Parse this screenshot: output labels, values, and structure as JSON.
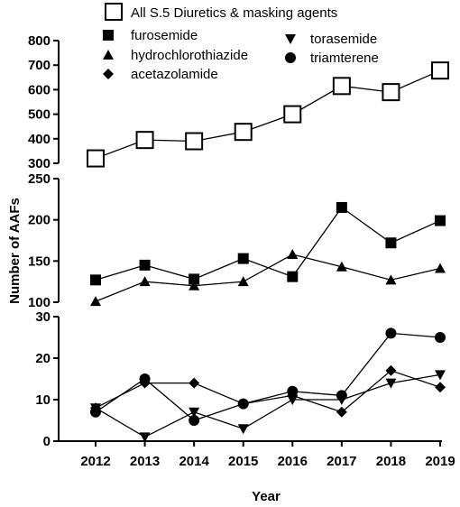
{
  "chart_data": {
    "type": "line",
    "xlabel": "Year",
    "ylabel": "Number of AAFs",
    "x": [
      2012,
      2013,
      2014,
      2015,
      2016,
      2017,
      2018,
      2019
    ],
    "x_tick_labels": [
      "2012",
      "2013",
      "2014",
      "2015",
      "2016",
      "2017",
      "2018",
      "2019"
    ],
    "legend_placement": "top",
    "grid": false,
    "panels": [
      {
        "ylim": [
          300,
          800
        ],
        "yticks": [
          300,
          400,
          500,
          600,
          700,
          800
        ],
        "y_tick_labels": [
          "300",
          "400",
          "500",
          "600",
          "700",
          "800"
        ],
        "series": [
          "All S.5 Diuretics & masking agents"
        ]
      },
      {
        "ylim": [
          100,
          250
        ],
        "yticks": [
          100,
          150,
          200,
          250
        ],
        "y_tick_labels": [
          "100",
          "150",
          "200",
          "250"
        ],
        "series": [
          "furosemide",
          "hydrochlorothiazide"
        ]
      },
      {
        "ylim": [
          0,
          30
        ],
        "yticks": [
          0,
          10,
          20,
          30
        ],
        "y_tick_labels": [
          "0",
          "10",
          "20",
          "30"
        ],
        "series": [
          "torasemide",
          "triamterene",
          "acetazolamide"
        ]
      }
    ],
    "series": [
      {
        "name": "All S.5 Diuretics & masking agents",
        "marker": "open-square",
        "values": [
          320,
          395,
          390,
          428,
          500,
          615,
          590,
          678
        ]
      },
      {
        "name": "furosemide",
        "marker": "square",
        "values": [
          127,
          145,
          128,
          153,
          131,
          215,
          172,
          199
        ]
      },
      {
        "name": "hydrochlorothiazide",
        "marker": "triangle-up",
        "values": [
          101,
          125,
          120,
          125,
          158,
          143,
          127,
          141
        ]
      },
      {
        "name": "torasemide",
        "marker": "triangle-down",
        "values": [
          8,
          1,
          7,
          3,
          10,
          10,
          14,
          16
        ]
      },
      {
        "name": "triamterene",
        "marker": "circle",
        "values": [
          7,
          15,
          5,
          9,
          12,
          11,
          26,
          25
        ]
      },
      {
        "name": "acetazolamide",
        "marker": "diamond",
        "values": [
          8,
          14,
          14,
          9,
          11,
          7,
          17,
          13
        ]
      }
    ],
    "legend": [
      {
        "label": "All S.5 Diuretics & masking agents",
        "marker": "open-square"
      },
      {
        "label": "furosemide",
        "marker": "square"
      },
      {
        "label": "hydrochlorothiazide",
        "marker": "triangle-up"
      },
      {
        "label": "acetazolamide",
        "marker": "diamond"
      },
      {
        "label": "torasemide",
        "marker": "triangle-down"
      },
      {
        "label": "triamterene",
        "marker": "circle"
      }
    ],
    "colors": {
      "line": "#000000",
      "marker_fill": "#000000",
      "open_marker_fill": "#ffffff"
    }
  }
}
